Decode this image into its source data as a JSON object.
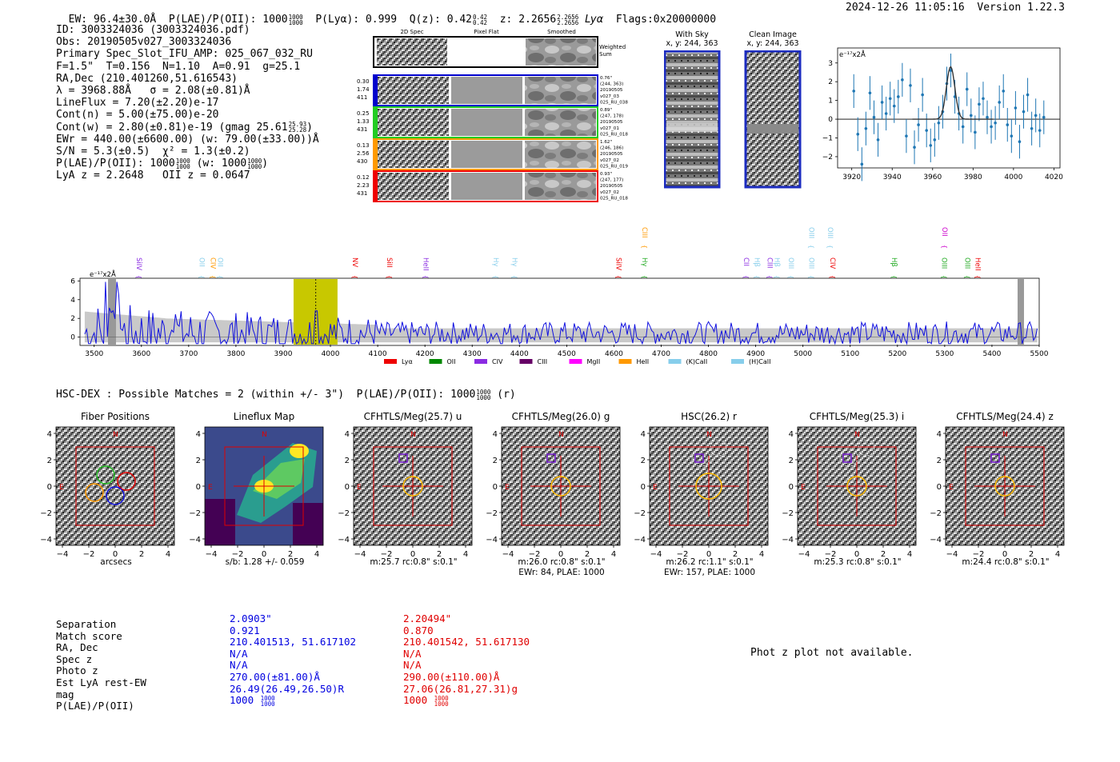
{
  "header": {
    "ew": "EW: 96.4±30.0Å",
    "plae_label": "P(LAE)/P(OII): 1000",
    "plae_frac": [
      "1000",
      "1000"
    ],
    "plya": "P(Lyα): 0.999",
    "qz": "Q(z): 0.42",
    "qz_frac": [
      "0.42",
      "0.42"
    ],
    "z": "z: 2.2656",
    "z_frac": [
      "2.2656",
      "2.2656"
    ],
    "lya": "Lyα",
    "flags": "Flags:0x20000000",
    "timestamp": "2024-12-26 11:05:16",
    "version": "Version 1.22.3"
  },
  "info": {
    "id": "ID: 3003324036 (3003324036.pdf)",
    "obs": "Obs: 20190505v027_3003324036",
    "primary": "Primary Spec_Slot_IFU_AMP: 025_067_032_RU",
    "fparams": "F=1.5\"  T=0.156  N=1.10  A=0.91  g=25.1",
    "radec": "RA,Dec (210.401260,51.616543)",
    "lambda": "λ = 3968.88Å   σ = 2.08(±0.81)Å",
    "lineflux": "LineFlux = 7.20(±2.20)e-17",
    "contn": "Cont(n) = 5.00(±75.00)e-20",
    "contw": "Cont(w) = 2.80(±0.81)e-19 (gmag 25.61",
    "contw_frac": [
      "25.93",
      "25.28"
    ],
    "ewr": "EWr = 440.00(±6600.00) (w: 79.00(±33.00))Å",
    "sn": "S/N = 5.3(±0.5)  χ² = 1.3(±0.2)",
    "plae": "P(LAE)/P(OII): 1000",
    "plae_frac": [
      "1000",
      "1000"
    ],
    "plae_w": "(w: 1000",
    "plae_w_frac": [
      "1000",
      "1000"
    ],
    "lyaz": "LyA z = 2.2648   OII z = 0.0647"
  },
  "cutouts": {
    "col_labels": [
      "2D Spec",
      "Pixel Flat",
      "Smoothed"
    ],
    "weighted_sum": [
      "Weighted",
      "Sum"
    ],
    "rows": [
      {
        "left": [
          "0.30",
          "1.74",
          "411"
        ],
        "right": [
          "0.76\"",
          "(244, 363)",
          "20190505",
          "v027_03",
          "025_RU_038"
        ],
        "color": "#0000cc"
      },
      {
        "left": [
          "0.25",
          "1.33",
          "431"
        ],
        "right": [
          "0.89\"",
          "(247, 178)",
          "20190505",
          "v027_01",
          "025_RU_018"
        ],
        "color": "#22cc22"
      },
      {
        "left": [
          "0.13",
          "2.56",
          "430"
        ],
        "right": [
          "1.62\"",
          "(246, 186)",
          "20190505",
          "v027_02",
          "025_RU_019"
        ],
        "color": "#ff9900"
      },
      {
        "left": [
          "0.12",
          "2.23",
          "431"
        ],
        "right": [
          "0.93\"",
          "(247, 177)",
          "20190505",
          "v027_02",
          "025_RU_018"
        ],
        "color": "#ee0000"
      }
    ]
  },
  "sky": {
    "with_sky_title": "With Sky",
    "with_sky_xy": "x, y: 244, 363",
    "clean_title": "Clean Image",
    "clean_xy": "x, y: 244, 363"
  },
  "zoom_plot": {
    "unit": "e⁻¹⁷x2Å",
    "xticks": [
      "3920",
      "3940",
      "3960",
      "3980",
      "4000",
      "4020"
    ],
    "yticks": [
      "3",
      "2",
      "1",
      "0",
      "−1",
      "−2"
    ],
    "xrange": [
      3913,
      4023
    ],
    "yrange": [
      -2.6,
      3.8
    ],
    "points": [
      [
        3921,
        1.5
      ],
      [
        3923,
        -0.8
      ],
      [
        3925,
        -2.4
      ],
      [
        3927,
        -0.5
      ],
      [
        3929,
        1.4
      ],
      [
        3931,
        0.1
      ],
      [
        3933,
        -1.1
      ],
      [
        3935,
        0.9
      ],
      [
        3937,
        0.3
      ],
      [
        3939,
        1.1
      ],
      [
        3941,
        0.7
      ],
      [
        3943,
        1.2
      ],
      [
        3945,
        2.1
      ],
      [
        3947,
        -0.9
      ],
      [
        3949,
        1.8
      ],
      [
        3951,
        -1.5
      ],
      [
        3953,
        -0.3
      ],
      [
        3955,
        1.3
      ],
      [
        3957,
        -0.6
      ],
      [
        3959,
        -1.4
      ],
      [
        3961,
        -1.1
      ],
      [
        3963,
        -0.2
      ],
      [
        3965,
        0.4
      ],
      [
        3967,
        1.9
      ],
      [
        3969,
        2.6
      ],
      [
        3971,
        1.2
      ],
      [
        3973,
        0.3
      ],
      [
        3975,
        -0.4
      ],
      [
        3977,
        1.6
      ],
      [
        3979,
        0.2
      ],
      [
        3981,
        -0.7
      ],
      [
        3983,
        0.8
      ],
      [
        3985,
        1.1
      ],
      [
        3987,
        0.1
      ],
      [
        3989,
        -0.4
      ],
      [
        3991,
        -0.2
      ],
      [
        3993,
        0.9
      ],
      [
        3995,
        1.5
      ],
      [
        3997,
        -0.3
      ],
      [
        3999,
        -0.9
      ],
      [
        4001,
        0.6
      ],
      [
        4003,
        -1.2
      ],
      [
        4005,
        0.4
      ],
      [
        4007,
        1.3
      ],
      [
        4009,
        -0.5
      ],
      [
        4011,
        0.2
      ],
      [
        4013,
        -0.6
      ],
      [
        4015,
        0.1
      ]
    ],
    "fit_center": 3968.9,
    "fit_amp": 2.8,
    "fit_sigma": 2.08
  },
  "spectrum": {
    "unit": "e⁻¹⁷x2Å",
    "xticks": [
      "3500",
      "3600",
      "3700",
      "3800",
      "3900",
      "4000",
      "4100",
      "4200",
      "4300",
      "4400",
      "4500",
      "4600",
      "4700",
      "4800",
      "4900",
      "5000",
      "5100",
      "5200",
      "5300",
      "5400",
      "5500"
    ],
    "yticks": [
      "6",
      "4",
      "2",
      "0"
    ],
    "xrange": [
      3470,
      5500
    ],
    "yrange": [
      -0.8,
      6.2
    ],
    "highlight": [
      3922,
      4015
    ],
    "line_center": 3969,
    "lines": [
      {
        "name": "SiIV",
        "x": 3585,
        "color": "#8a2be2",
        "row": 0
      },
      {
        "name": "OII",
        "x": 3718,
        "color": "#87ceeb",
        "row": 0
      },
      {
        "name": "CIV",
        "x": 3742,
        "color": "#ff9900",
        "row": 0
      },
      {
        "name": "OII",
        "x": 3757,
        "color": "#87ceeb",
        "row": 0
      },
      {
        "name": "NV",
        "x": 4042,
        "color": "#ee0000",
        "row": 0
      },
      {
        "name": "SiII",
        "x": 4115,
        "color": "#ee0000",
        "row": 0
      },
      {
        "name": "HeII",
        "x": 4192,
        "color": "#8a2be2",
        "row": 0
      },
      {
        "name": "Hγ",
        "x": 4340,
        "color": "#87ceeb",
        "row": 0
      },
      {
        "name": "Hγ",
        "x": 4380,
        "color": "#87ceeb",
        "row": 0
      },
      {
        "name": "SiIV",
        "x": 4600,
        "color": "#ee0000",
        "row": 0
      },
      {
        "name": "Hγ",
        "x": 4655,
        "color": "#22aa22",
        "row": 0
      },
      {
        "name": "CIII",
        "x": 4655,
        "color": "#ff9900",
        "row": 1
      },
      {
        "name": "CII",
        "x": 4870,
        "color": "#8a2be2",
        "row": 0
      },
      {
        "name": "Hβ",
        "x": 4893,
        "color": "#87ceeb",
        "row": 0
      },
      {
        "name": "CIII",
        "x": 4920,
        "color": "#8a2be2",
        "row": 0
      },
      {
        "name": "Hβ",
        "x": 4935,
        "color": "#87ceeb",
        "row": 0
      },
      {
        "name": "OIII",
        "x": 4965,
        "color": "#87ceeb",
        "row": 0
      },
      {
        "name": "OIII",
        "x": 5008,
        "color": "#87ceeb",
        "row": 0
      },
      {
        "name": "OIII",
        "x": 5008,
        "color": "#87ceeb",
        "row": 1
      },
      {
        "name": "OIII",
        "x": 5048,
        "color": "#87ceeb",
        "row": 1
      },
      {
        "name": "CIV",
        "x": 5053,
        "color": "#ee0000",
        "row": 0
      },
      {
        "name": "Hβ",
        "x": 5183,
        "color": "#22aa22",
        "row": 0
      },
      {
        "name": "OIII",
        "x": 5289,
        "color": "#22aa22",
        "row": 0
      },
      {
        "name": "OII",
        "x": 5290,
        "color": "#cc00cc",
        "row": 1
      },
      {
        "name": "OIII",
        "x": 5338,
        "color": "#22aa22",
        "row": 0
      },
      {
        "name": "HeII",
        "x": 5360,
        "color": "#ee0000",
        "row": 0
      }
    ],
    "legend": [
      {
        "label": "Lyα",
        "color": "#ee0000"
      },
      {
        "label": "OII",
        "color": "#008800"
      },
      {
        "label": "CIV",
        "color": "#8a2be2"
      },
      {
        "label": "CIII",
        "color": "#660066"
      },
      {
        "label": "MgII",
        "color": "#ff00ff"
      },
      {
        "label": "HeII",
        "color": "#ff9900"
      },
      {
        "label": "(K)CaII",
        "color": "#87ceeb"
      },
      {
        "label": "(H)CaII",
        "color": "#87ceeb"
      }
    ]
  },
  "match_header": {
    "text": "HSC-DEX : Possible Matches = 2 (within +/- 3\")  P(LAE)/P(OII): 1000",
    "frac": [
      "1000",
      "1000"
    ],
    "suffix": "(r)"
  },
  "stamps": [
    {
      "title": "Fiber Positions",
      "caption1": "arcsecs",
      "caption2": ""
    },
    {
      "title": "Lineflux Map",
      "caption1": "s/b: 1.28 +/- 0.059",
      "caption2": ""
    },
    {
      "title": "CFHTLS/Meg(25.7) u",
      "caption1": "m:25.7 rc:0.8\"  s:0.1\"",
      "caption2": ""
    },
    {
      "title": "CFHTLS/Meg(26.0) g",
      "caption1": "m:26.0 rc:0.8\"  s:0.1\"",
      "caption2": "EWr: 84, PLAE: 1000"
    },
    {
      "title": "HSC(26.2) r",
      "caption1": "m:26.2 rc:1.1\"  s:0.1\"",
      "caption2": "EWr: 157, PLAE: 1000"
    },
    {
      "title": "CFHTLS/Meg(25.3) i",
      "caption1": "m:25.3 rc:0.8\"  s:0.1\"",
      "caption2": ""
    },
    {
      "title": "CFHTLS/Meg(24.4) z",
      "caption1": "m:24.4 rc:0.8\"  s:0.1\"",
      "caption2": ""
    }
  ],
  "stamp_axis": {
    "yticks": [
      "4",
      "2",
      "0",
      "−2",
      "−4"
    ],
    "xticks": [
      "−4",
      "−2",
      "0",
      "2",
      "4"
    ],
    "north": "N",
    "east": "E"
  },
  "table": {
    "labels": [
      "Separation",
      "Match score",
      "RA, Dec",
      "Spec z",
      "Photo z",
      "Est LyA rest-EW",
      "mag",
      "P(LAE)/P(OII)"
    ],
    "col1": [
      "2.0903\"",
      "0.921",
      "210.401513, 51.617102",
      "N/A",
      "N/A",
      "270.00(±81.00)Å",
      "26.49(26.49,26.50)R",
      "1000"
    ],
    "col1_frac": [
      "1000",
      "1000"
    ],
    "col2": [
      "2.20494\"",
      "0.870",
      "210.401542, 51.617130",
      "N/A",
      "N/A",
      "290.00(±110.00)Å",
      "27.06(26.81,27.31)g",
      "1000"
    ],
    "col2_frac": [
      "1000",
      "1000"
    ]
  },
  "photz": "Phot z plot not available."
}
